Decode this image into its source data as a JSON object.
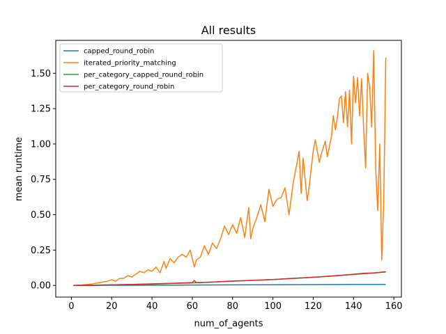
{
  "chart_data": {
    "type": "line",
    "title": "All results",
    "xlabel": "num_of_agents",
    "ylabel": "mean runtime",
    "xlim": [
      -7.75,
      163.75
    ],
    "ylim": [
      -0.0825,
      1.7325
    ],
    "xticks": [
      0,
      20,
      40,
      60,
      80,
      100,
      120,
      140,
      160
    ],
    "yticks": [
      0.0,
      0.25,
      0.5,
      0.75,
      1.0,
      1.25,
      1.5
    ],
    "ytick_labels": [
      "0.00",
      "0.25",
      "0.50",
      "0.75",
      "1.00",
      "1.25",
      "1.50"
    ],
    "grid": false,
    "legend_position": "upper-left",
    "series": [
      {
        "name": "capped_round_robin",
        "color": "#1f77b4",
        "x": [
          1,
          20,
          40,
          60,
          80,
          100,
          120,
          140,
          156
        ],
        "y": [
          0.0,
          0.001,
          0.002,
          0.003,
          0.004,
          0.005,
          0.006,
          0.007,
          0.007
        ]
      },
      {
        "name": "iterated_priority_matching",
        "color": "#ff7f0e",
        "x": [
          1,
          5,
          10,
          14,
          16,
          18,
          20,
          22,
          24,
          26,
          28,
          30,
          32,
          34,
          36,
          38,
          40,
          42,
          44,
          46,
          47,
          49,
          51,
          53,
          55,
          57,
          59,
          61,
          62,
          64,
          66,
          68,
          70,
          72,
          74,
          76,
          78,
          80,
          82,
          84,
          86,
          88,
          89,
          90,
          92,
          94,
          96,
          98,
          100,
          102,
          104,
          106,
          108,
          110,
          112,
          113,
          114,
          115,
          117,
          118,
          120,
          121,
          123,
          124,
          126,
          127,
          129,
          130,
          131,
          132,
          133,
          134,
          135,
          136,
          137,
          138,
          139,
          140,
          141,
          142,
          143,
          144,
          145,
          146,
          147,
          148,
          149,
          150,
          151,
          152,
          153,
          154,
          155,
          156
        ],
        "y": [
          0.0,
          0.003,
          0.01,
          0.02,
          0.025,
          0.03,
          0.04,
          0.03,
          0.05,
          0.05,
          0.07,
          0.06,
          0.08,
          0.1,
          0.09,
          0.11,
          0.1,
          0.13,
          0.09,
          0.17,
          0.12,
          0.19,
          0.16,
          0.2,
          0.22,
          0.2,
          0.25,
          0.13,
          0.18,
          0.2,
          0.28,
          0.22,
          0.3,
          0.26,
          0.33,
          0.42,
          0.36,
          0.43,
          0.37,
          0.48,
          0.34,
          0.55,
          0.33,
          0.4,
          0.48,
          0.57,
          0.45,
          0.68,
          0.56,
          0.61,
          0.62,
          0.69,
          0.5,
          0.72,
          0.87,
          0.95,
          0.65,
          0.9,
          0.6,
          0.7,
          0.95,
          1.03,
          0.87,
          0.93,
          1.02,
          0.91,
          1.05,
          1.2,
          1.1,
          1.19,
          1.32,
          1.34,
          1.15,
          1.37,
          1.12,
          1.38,
          1.0,
          1.48,
          1.29,
          1.47,
          1.2,
          1.46,
          1.11,
          0.83,
          1.5,
          1.4,
          1.12,
          1.66,
          0.83,
          0.53,
          1.0,
          0.18,
          0.6,
          1.61
        ]
      },
      {
        "name": "per_category_capped_round_robin",
        "color": "#2ca02c",
        "x": [
          1,
          20,
          40,
          60,
          80,
          100,
          120,
          140,
          156
        ],
        "y": [
          0.0,
          0.004,
          0.01,
          0.018,
          0.03,
          0.042,
          0.058,
          0.078,
          0.095
        ]
      },
      {
        "name": "per_category_round_robin",
        "color": "#d62728",
        "x": [
          1,
          10,
          20,
          30,
          40,
          50,
          60,
          61,
          62,
          70,
          80,
          90,
          100,
          110,
          120,
          130,
          140,
          145,
          150,
          156
        ],
        "y": [
          0.0,
          0.001,
          0.004,
          0.007,
          0.011,
          0.015,
          0.02,
          0.035,
          0.02,
          0.024,
          0.031,
          0.036,
          0.042,
          0.05,
          0.058,
          0.067,
          0.079,
          0.086,
          0.088,
          0.097
        ]
      }
    ]
  }
}
